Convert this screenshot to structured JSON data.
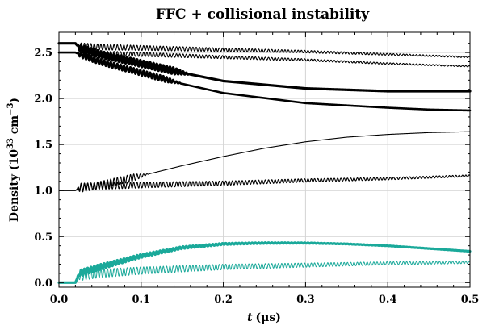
{
  "chart_data": {
    "type": "line",
    "title": "FFC + collisional instability",
    "xlabel_var": "t",
    "xlabel_unit": "(μs)",
    "ylabel_main": "Density (10",
    "ylabel_exp": "33",
    "ylabel_unit": " cm",
    "ylabel_unit_exp": "−3",
    "ylabel_close": ")",
    "xlim": [
      0,
      0.5
    ],
    "ylim": [
      -0.05,
      2.72
    ],
    "xticks": [
      0.0,
      0.1,
      0.2,
      0.3,
      0.4,
      0.5
    ],
    "yticks": [
      0.0,
      0.5,
      1.0,
      1.5,
      2.0,
      2.5
    ],
    "xtick_labels": [
      "0.0",
      "0.1",
      "0.2",
      "0.3",
      "0.4",
      "0.5"
    ],
    "ytick_labels": [
      "0.0",
      "0.5",
      "1.0",
      "1.5",
      "2.0",
      "2.5"
    ],
    "grid": true,
    "legend": "none",
    "colors": {
      "black": "#000000",
      "teal": "#1aa99a",
      "grid": "#d4d4d4"
    },
    "series": [
      {
        "color": "#000000",
        "width": 3.2,
        "osc_amp": 0.035,
        "osc_end": 0.16,
        "osc_period": 0.004,
        "x": [
          0,
          0.02,
          0.025,
          0.05,
          0.1,
          0.15,
          0.2,
          0.3,
          0.4,
          0.45,
          0.5
        ],
        "y": [
          2.6,
          2.6,
          2.55,
          2.48,
          2.38,
          2.28,
          2.19,
          2.11,
          2.08,
          2.08,
          2.08
        ]
      },
      {
        "color": "#000000",
        "width": 2.6,
        "osc_amp": 0.03,
        "osc_end": 0.15,
        "osc_period": 0.004,
        "x": [
          0,
          0.02,
          0.025,
          0.05,
          0.1,
          0.15,
          0.2,
          0.3,
          0.4,
          0.45,
          0.5
        ],
        "y": [
          2.5,
          2.5,
          2.48,
          2.4,
          2.28,
          2.16,
          2.06,
          1.95,
          1.9,
          1.88,
          1.87
        ]
      },
      {
        "color": "#000000",
        "width": 1.1,
        "osc_amp": 0.035,
        "osc_end": 0.5,
        "osc_period": 0.004,
        "osc_decay": 0.3,
        "x": [
          0,
          0.02,
          0.025,
          0.05,
          0.1,
          0.2,
          0.3,
          0.4,
          0.5
        ],
        "y": [
          2.6,
          2.6,
          2.57,
          2.56,
          2.55,
          2.53,
          2.51,
          2.48,
          2.45
        ]
      },
      {
        "color": "#000000",
        "width": 1.1,
        "osc_amp": 0.03,
        "osc_end": 0.5,
        "osc_period": 0.004,
        "osc_decay": 0.3,
        "x": [
          0,
          0.02,
          0.025,
          0.05,
          0.1,
          0.2,
          0.3,
          0.4,
          0.5
        ],
        "y": [
          2.5,
          2.5,
          2.5,
          2.49,
          2.48,
          2.45,
          2.42,
          2.38,
          2.35
        ]
      },
      {
        "color": "#000000",
        "width": 1.1,
        "osc_amp": 0.04,
        "osc_end": 0.11,
        "osc_period": 0.004,
        "x": [
          0,
          0.02,
          0.025,
          0.05,
          0.1,
          0.15,
          0.2,
          0.25,
          0.3,
          0.35,
          0.4,
          0.45,
          0.5
        ],
        "y": [
          1.0,
          1.0,
          1.02,
          1.06,
          1.16,
          1.27,
          1.37,
          1.46,
          1.53,
          1.58,
          1.61,
          1.63,
          1.64
        ]
      },
      {
        "color": "#000000",
        "width": 1.1,
        "osc_amp": 0.04,
        "osc_end": 0.5,
        "osc_period": 0.004,
        "osc_decay": 0.35,
        "x": [
          0,
          0.02,
          0.025,
          0.05,
          0.1,
          0.2,
          0.3,
          0.4,
          0.5
        ],
        "y": [
          1.0,
          1.0,
          1.04,
          1.05,
          1.06,
          1.08,
          1.11,
          1.13,
          1.16
        ]
      },
      {
        "color": "#1aa99a",
        "width": 3.2,
        "osc_amp": 0.035,
        "osc_end": 0.5,
        "osc_period": 0.004,
        "osc_decay": 0.12,
        "x": [
          0,
          0.02,
          0.025,
          0.05,
          0.1,
          0.15,
          0.2,
          0.25,
          0.3,
          0.35,
          0.4,
          0.45,
          0.5
        ],
        "y": [
          0.0,
          0.0,
          0.1,
          0.17,
          0.29,
          0.38,
          0.42,
          0.43,
          0.43,
          0.42,
          0.4,
          0.37,
          0.34
        ]
      },
      {
        "color": "#1aa99a",
        "width": 1.0,
        "osc_amp": 0.05,
        "osc_end": 0.5,
        "osc_period": 0.004,
        "osc_decay": 0.35,
        "x": [
          0,
          0.02,
          0.025,
          0.05,
          0.1,
          0.2,
          0.3,
          0.4,
          0.5
        ],
        "y": [
          0.0,
          0.0,
          0.07,
          0.1,
          0.13,
          0.17,
          0.19,
          0.21,
          0.22
        ]
      }
    ]
  }
}
